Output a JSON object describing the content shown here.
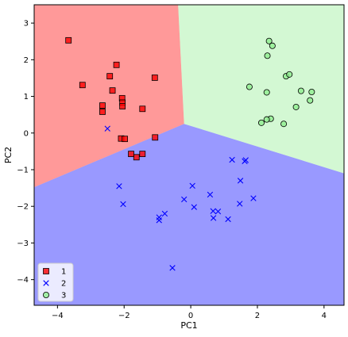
{
  "chart_data": {
    "type": "scatter",
    "xlabel": "PC1",
    "ylabel": "PC2",
    "xlim": [
      -4.7,
      4.6
    ],
    "ylim": [
      -4.7,
      3.5
    ],
    "xticks": [
      -4,
      -2,
      0,
      2,
      4
    ],
    "yticks": [
      -4,
      -3,
      -2,
      -1,
      0,
      1,
      2,
      3
    ],
    "grid": false,
    "legend_position": "bottom-left",
    "regions": [
      {
        "class": "1",
        "color": "#ff0000",
        "alpha": 0.4
      },
      {
        "class": "2",
        "color": "#0000ff",
        "alpha": 0.4
      },
      {
        "class": "3",
        "color": "#90ee90",
        "alpha": 0.4
      }
    ],
    "region_boundaries": {
      "center": [
        -0.2,
        0.25
      ],
      "to_top": [
        -0.38,
        3.5
      ],
      "to_left": [
        -4.7,
        -1.48
      ],
      "to_right": [
        4.6,
        -1.1
      ]
    },
    "series": [
      {
        "name": "1",
        "marker": "square",
        "color": "#ff0000",
        "edgecolor": "#000000",
        "points": [
          [
            -3.67,
            2.53
          ],
          [
            -3.25,
            1.31
          ],
          [
            -2.23,
            1.86
          ],
          [
            -2.43,
            1.55
          ],
          [
            -1.08,
            1.51
          ],
          [
            -2.35,
            1.16
          ],
          [
            -2.06,
            0.95
          ],
          [
            -2.05,
            0.83
          ],
          [
            -2.05,
            0.73
          ],
          [
            -2.65,
            0.75
          ],
          [
            -2.65,
            0.58
          ],
          [
            -1.45,
            0.66
          ],
          [
            -1.07,
            -0.12
          ],
          [
            -2.09,
            -0.15
          ],
          [
            -1.98,
            -0.16
          ],
          [
            -1.45,
            -0.57
          ],
          [
            -1.63,
            -0.66
          ],
          [
            -1.79,
            -0.57
          ]
        ]
      },
      {
        "name": "2",
        "marker": "x",
        "color": "#0000ff",
        "points": [
          [
            -2.5,
            0.12
          ],
          [
            -2.15,
            -1.45
          ],
          [
            -2.03,
            -1.94
          ],
          [
            -0.95,
            -2.3
          ],
          [
            -0.95,
            -2.38
          ],
          [
            -0.78,
            -2.2
          ],
          [
            -0.55,
            -3.68
          ],
          [
            -0.2,
            -1.81
          ],
          [
            0.05,
            -1.44
          ],
          [
            0.1,
            -2.02
          ],
          [
            0.58,
            -1.68
          ],
          [
            0.67,
            -2.13
          ],
          [
            0.68,
            -2.32
          ],
          [
            0.82,
            -2.14
          ],
          [
            1.12,
            -2.35
          ],
          [
            1.24,
            -0.73
          ],
          [
            1.47,
            -1.93
          ],
          [
            1.49,
            -1.3
          ],
          [
            1.62,
            -0.77
          ],
          [
            1.65,
            -0.74
          ],
          [
            1.88,
            -1.78
          ]
        ]
      },
      {
        "name": "3",
        "marker": "circle",
        "color": "#90ee90",
        "edgecolor": "#000000",
        "points": [
          [
            2.35,
            2.51
          ],
          [
            2.45,
            2.38
          ],
          [
            2.3,
            2.11
          ],
          [
            2.86,
            1.55
          ],
          [
            2.96,
            1.6
          ],
          [
            1.76,
            1.26
          ],
          [
            2.28,
            1.11
          ],
          [
            3.31,
            1.15
          ],
          [
            3.63,
            1.12
          ],
          [
            3.58,
            0.89
          ],
          [
            3.16,
            0.71
          ],
          [
            2.4,
            0.39
          ],
          [
            2.28,
            0.37
          ],
          [
            2.12,
            0.28
          ],
          [
            2.79,
            0.25
          ]
        ]
      }
    ]
  }
}
